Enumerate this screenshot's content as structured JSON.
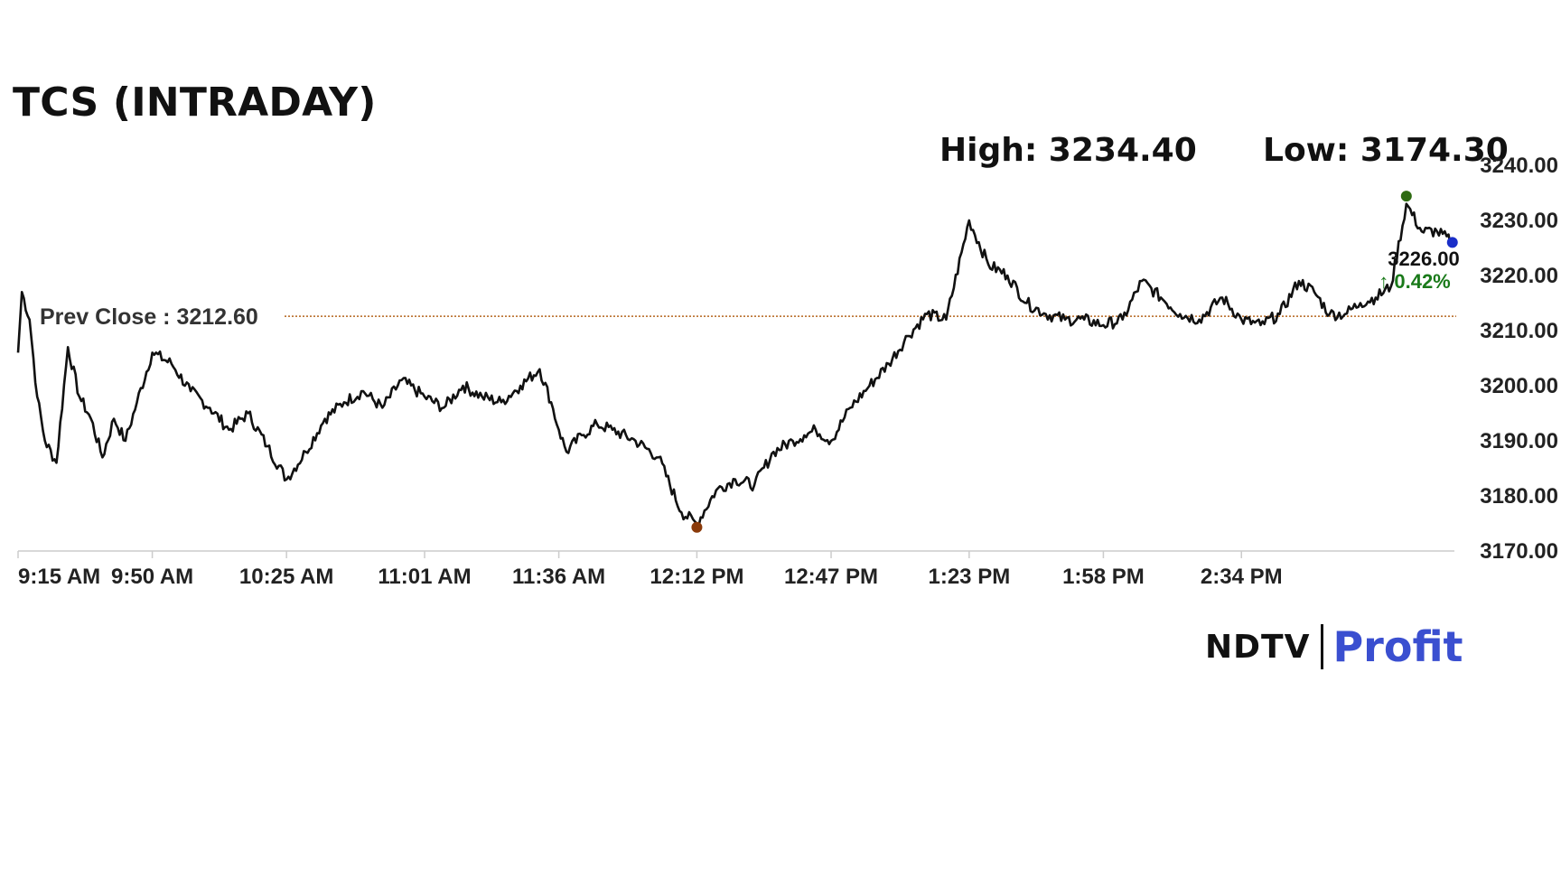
{
  "header": {
    "title": "TCS (INTRADAY)",
    "high_text": "High: 3234.40",
    "low_text": "Low: 3174.30"
  },
  "brand": {
    "ndtv": "NDTV",
    "profit": "Profit"
  },
  "colors": {
    "line": "#111111",
    "prev_close": "#b5651d",
    "up": "#1a7a1a",
    "high_marker": "#2e6b12",
    "low_marker": "#8a3a0a",
    "last_marker": "#1a2ec8",
    "axis": "#cccccc",
    "logo_profit": "#3a4fd0"
  },
  "chart_data": {
    "type": "line",
    "title": "TCS (INTRADAY)",
    "x_tick_labels": [
      "9:15 AM",
      "9:50 AM",
      "10:25 AM",
      "11:01 AM",
      "11:36 AM",
      "12:12 PM",
      "12:47 PM",
      "1:23 PM",
      "1:58 PM",
      "2:34 PM"
    ],
    "y_tick_labels": [
      "3240.00",
      "3230.00",
      "3220.00",
      "3210.00",
      "3200.00",
      "3190.00",
      "3180.00",
      "3170.00"
    ],
    "ylim": [
      3170,
      3240
    ],
    "xlim": [
      "9:15 AM",
      "3:30 PM"
    ],
    "prev_close": 3212.6,
    "prev_close_label": "Prev Close : 3212.60",
    "high": 3234.4,
    "low": 3174.3,
    "last_price": "3226.00",
    "change_pct": "↑ 0.42%",
    "series": [
      {
        "x": [
          "9:15 AM",
          "9:16 AM",
          "9:18 AM",
          "9:20 AM",
          "9:22 AM",
          "9:25 AM",
          "9:28 AM",
          "9:31 AM",
          "9:34 AM",
          "9:37 AM",
          "9:40 AM",
          "9:43 AM",
          "9:46 AM",
          "9:50 AM",
          "9:55 AM",
          "10:00 AM",
          "10:05 AM",
          "10:10 AM",
          "10:15 AM",
          "10:20 AM",
          "10:25 AM",
          "10:30 AM",
          "10:35 AM",
          "10:40 AM",
          "10:45 AM",
          "10:50 AM",
          "10:55 AM",
          "11:01 AM",
          "11:06 AM",
          "11:11 AM",
          "11:16 AM",
          "11:21 AM",
          "11:26 AM",
          "11:31 AM",
          "11:34 AM",
          "11:36 AM",
          "11:38 AM",
          "11:42 AM",
          "11:46 AM",
          "11:50 AM",
          "11:56 AM",
          "12:02 PM",
          "12:08 PM",
          "12:12 PM",
          "12:17 PM",
          "12:22 PM",
          "12:27 PM",
          "12:32 PM",
          "12:37 PM",
          "12:40 PM",
          "12:43 PM",
          "12:47 PM",
          "12:52 PM",
          "12:57 PM",
          "1:02 PM",
          "1:07 PM",
          "1:12 PM",
          "1:17 PM",
          "1:23 PM",
          "1:28 PM",
          "1:33 PM",
          "1:38 PM",
          "1:43 PM",
          "1:48 PM",
          "1:53 PM",
          "1:58 PM",
          "2:03 PM",
          "2:08 PM",
          "2:13 PM",
          "2:18 PM",
          "2:23 PM",
          "2:29 PM",
          "2:34 PM",
          "2:39 PM",
          "2:44 PM",
          "2:49 PM",
          "2:53 PM",
          "2:57 PM",
          "3:01 PM",
          "3:05 PM",
          "3:09 PM",
          "3:13 PM",
          "3:17 PM",
          "3:21 PM",
          "3:25 PM",
          "3:29 PM"
        ],
        "y": [
          3206,
          3217,
          3212,
          3198,
          3190,
          3186,
          3207,
          3198,
          3194,
          3187,
          3194,
          3190,
          3197,
          3206,
          3204,
          3199,
          3196,
          3192,
          3195,
          3189,
          3183,
          3188,
          3194,
          3197,
          3199,
          3196,
          3201,
          3198,
          3196,
          3200,
          3198,
          3197,
          3200,
          3203,
          3197,
          3192,
          3188,
          3191,
          3193,
          3192,
          3190,
          3187,
          3177,
          3175,
          3181,
          3183,
          3182,
          3188,
          3190,
          3191,
          3192,
          3190,
          3196,
          3200,
          3204,
          3209,
          3213,
          3212,
          3230,
          3222,
          3220,
          3215,
          3213,
          3212,
          3212,
          3211,
          3212,
          3219,
          3216,
          3213,
          3212,
          3216,
          3212,
          3211,
          3213,
          3219,
          3217,
          3213,
          3213,
          3215,
          3216,
          3218,
          3233,
          3228,
          3228,
          3226
        ]
      }
    ]
  }
}
